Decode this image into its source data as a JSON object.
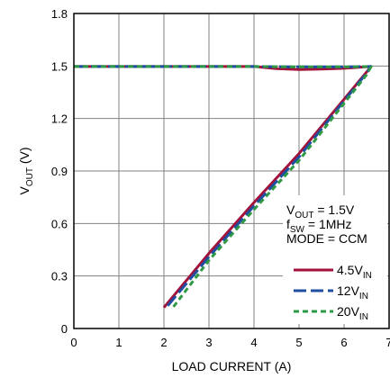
{
  "chart_data": {
    "type": "line",
    "xlabel": "LOAD CURRENT (A)",
    "ylabel": {
      "main": "V",
      "sub": "OUT",
      "unit": " (V)"
    },
    "xlim": [
      0,
      7
    ],
    "ylim": [
      0,
      1.8
    ],
    "xticks": [
      "0",
      "1",
      "2",
      "3",
      "4",
      "5",
      "6",
      "7"
    ],
    "yticks": [
      "0",
      "0.3",
      "0.6",
      "0.9",
      "1.2",
      "1.5",
      "1.8"
    ],
    "grid": true,
    "legend_placement": "bottom-right",
    "annotations": [
      {
        "main": "V",
        "sub": "OUT",
        "rest": " = 1.5V"
      },
      {
        "main": "f",
        "sub": "SW",
        "rest": " = 1MHz"
      },
      {
        "main": "MODE = CCM",
        "sub": "",
        "rest": ""
      }
    ],
    "series": [
      {
        "name": "4.5V",
        "name_sub": "IN",
        "color": "#a3123a",
        "dash": "solid",
        "x": [
          0,
          4.0,
          4.5,
          5.0,
          5.5,
          6.0,
          6.6,
          6.45,
          5.0,
          4.0,
          3.0,
          2.0
        ],
        "y": [
          1.497,
          1.497,
          1.485,
          1.48,
          1.482,
          1.487,
          1.497,
          1.45,
          1.0,
          0.72,
          0.43,
          0.12
        ]
      },
      {
        "name": "12V",
        "name_sub": "IN",
        "color": "#1f4fa0",
        "dash": "long-dash",
        "x": [
          0,
          4.0,
          5.0,
          6.0,
          6.6,
          6.47,
          5.0,
          4.0,
          3.0,
          2.05
        ],
        "y": [
          1.497,
          1.497,
          1.495,
          1.495,
          1.497,
          1.45,
          0.98,
          0.7,
          0.41,
          0.12
        ]
      },
      {
        "name": "20V",
        "name_sub": "IN",
        "color": "#2e9a45",
        "dash": "short-dash",
        "x": [
          0,
          4.0,
          5.0,
          6.0,
          6.6,
          6.5,
          5.0,
          4.0,
          3.0,
          2.2
        ],
        "y": [
          1.497,
          1.497,
          1.495,
          1.495,
          1.497,
          1.45,
          0.96,
          0.68,
          0.39,
          0.12
        ]
      }
    ]
  }
}
